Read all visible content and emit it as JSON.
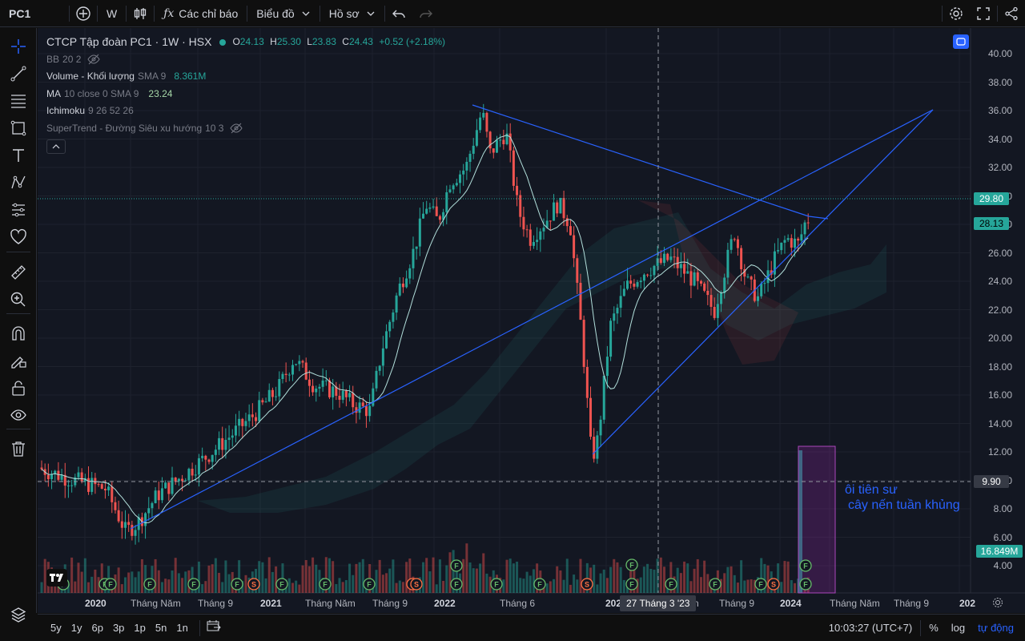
{
  "topbar": {
    "symbol": "PC1",
    "interval": "W",
    "indicators_label": "Các chỉ báo",
    "chart_label": "Biểu đồ",
    "profile_label": "Hồ sơ"
  },
  "legend": {
    "title": "CTCP Tập đoàn PC1 · 1W · HSX",
    "ohlc": {
      "o_label": "O",
      "o": "24.13",
      "h_label": "H",
      "h": "25.30",
      "l_label": "L",
      "l": "23.83",
      "c_label": "C",
      "c": "24.43",
      "change": "+0.52 (+2.18%)"
    },
    "indicators": [
      {
        "name": "BB",
        "params": "20 2",
        "value": ""
      },
      {
        "name": "Volume - Khối lượng",
        "params": "SMA 9",
        "value": "8.361M"
      },
      {
        "name": "MA",
        "params": "10 close 0 SMA 9",
        "value": "23.24"
      },
      {
        "name": "Ichimoku",
        "params": "9 26 52 26",
        "value": ""
      },
      {
        "name": "SuperTrend - Đường Siêu xu hướng",
        "params": "10 3",
        "value": ""
      }
    ]
  },
  "price_axis": {
    "ticks": [
      "40.00",
      "38.00",
      "36.00",
      "34.00",
      "32.00",
      "30.00",
      "28.00",
      "26.00",
      "24.00",
      "22.00",
      "20.00",
      "18.00",
      "16.00",
      "14.00",
      "12.00",
      "10.00",
      "8.00",
      "6.00",
      "4.00"
    ],
    "tags": {
      "last_price": "29.80",
      "ma_value": "28.13",
      "crosshair_price": "9.90",
      "volume_value": "16.849M"
    }
  },
  "time_axis": {
    "labels": [
      {
        "text": "2020",
        "bold": true
      },
      {
        "text": "Tháng Năm",
        "bold": false
      },
      {
        "text": "Tháng 9",
        "bold": false
      },
      {
        "text": "2021",
        "bold": true
      },
      {
        "text": "Tháng Năm",
        "bold": false
      },
      {
        "text": "Tháng 9",
        "bold": false
      },
      {
        "text": "2022",
        "bold": true
      },
      {
        "text": "Tháng 6",
        "bold": false
      },
      {
        "text": "202",
        "bold": true
      },
      {
        "text": "n",
        "bold": false
      },
      {
        "text": "Tháng 9",
        "bold": false
      },
      {
        "text": "2024",
        "bold": true
      },
      {
        "text": "Tháng Năm",
        "bold": false
      },
      {
        "text": "Tháng 9",
        "bold": false
      },
      {
        "text": "202",
        "bold": true
      }
    ],
    "crosshair_date": "27 Tháng 3 '23"
  },
  "annotation": {
    "line1": "ôi tiên sư",
    "line2": "cây nến tuần khủng"
  },
  "bottombar": {
    "ranges": [
      "5y",
      "1y",
      "6p",
      "3p",
      "1p",
      "5n",
      "1n"
    ],
    "time": "10:03:27 (UTC+7)",
    "percent": "%",
    "log": "log",
    "auto": "tự động"
  },
  "events": {
    "dividend": "F",
    "split": "S"
  },
  "colors": {
    "up": "#26a69a",
    "down": "#ef5350",
    "trend": "#2962ff",
    "bg": "#131722",
    "panel": "#0f0f0f"
  }
}
